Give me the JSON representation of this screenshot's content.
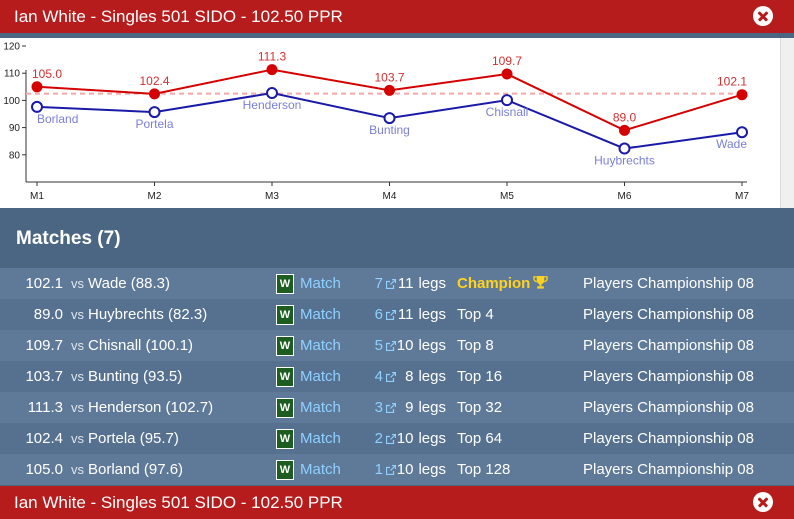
{
  "header": {
    "title": "Ian White - Singles 501 SIDO - 102.50 PPR"
  },
  "footer": {
    "title": "Ian White - Singles 501 SIDO - 102.50 PPR"
  },
  "colors": {
    "header_bg": "#b71c1c",
    "panel_bg": "#4b6683",
    "player_line": "#d50000",
    "opponent_line": "#1a1aa8",
    "average_line": "#f4a8a8",
    "link": "#8ed0ff",
    "champion": "#ffd21f",
    "win_badge": "#1d5e20"
  },
  "chart_data": {
    "type": "line",
    "categories": [
      "M1",
      "M2",
      "M3",
      "M4",
      "M5",
      "M6",
      "M7"
    ],
    "ylim": [
      70,
      120
    ],
    "yticks": [
      80,
      90,
      100,
      110,
      120
    ],
    "average": 102.5,
    "series": [
      {
        "values": [
          105.0,
          102.4,
          111.3,
          103.7,
          109.7,
          89.0,
          102.1
        ],
        "labels": [
          "105.0",
          "102.4",
          "111.3",
          "103.7",
          "109.7",
          "89.0",
          "102.1"
        ]
      },
      {
        "values": [
          97.6,
          95.7,
          102.7,
          93.5,
          100.1,
          82.3,
          88.3
        ],
        "labels": [
          "Borland",
          "Portela",
          "Henderson",
          "Bunting",
          "Chisnall",
          "Huybrechts",
          "Wade"
        ]
      }
    ]
  },
  "matches": {
    "heading": "Matches (7)",
    "vs_label": "vs",
    "win_label": "W",
    "match_label": "Match",
    "legs_label": "legs",
    "rows": [
      {
        "score": "102.1",
        "opponent": "Wade (88.3)",
        "num": "7",
        "legs": "11",
        "stage": "Champion",
        "event": "Players Championship 08",
        "champion": true
      },
      {
        "score": "89.0",
        "opponent": "Huybrechts (82.3)",
        "num": "6",
        "legs": "11",
        "stage": "Top 4",
        "event": "Players Championship 08"
      },
      {
        "score": "109.7",
        "opponent": "Chisnall (100.1)",
        "num": "5",
        "legs": "10",
        "stage": "Top 8",
        "event": "Players Championship 08"
      },
      {
        "score": "103.7",
        "opponent": "Bunting (93.5)",
        "num": "4",
        "legs": "8",
        "stage": "Top 16",
        "event": "Players Championship 08"
      },
      {
        "score": "111.3",
        "opponent": "Henderson (102.7)",
        "num": "3",
        "legs": "9",
        "stage": "Top 32",
        "event": "Players Championship 08"
      },
      {
        "score": "102.4",
        "opponent": "Portela (95.7)",
        "num": "2",
        "legs": "10",
        "stage": "Top 64",
        "event": "Players Championship 08"
      },
      {
        "score": "105.0",
        "opponent": "Borland (97.6)",
        "num": "1",
        "legs": "10",
        "stage": "Top 128",
        "event": "Players Championship 08"
      }
    ]
  }
}
